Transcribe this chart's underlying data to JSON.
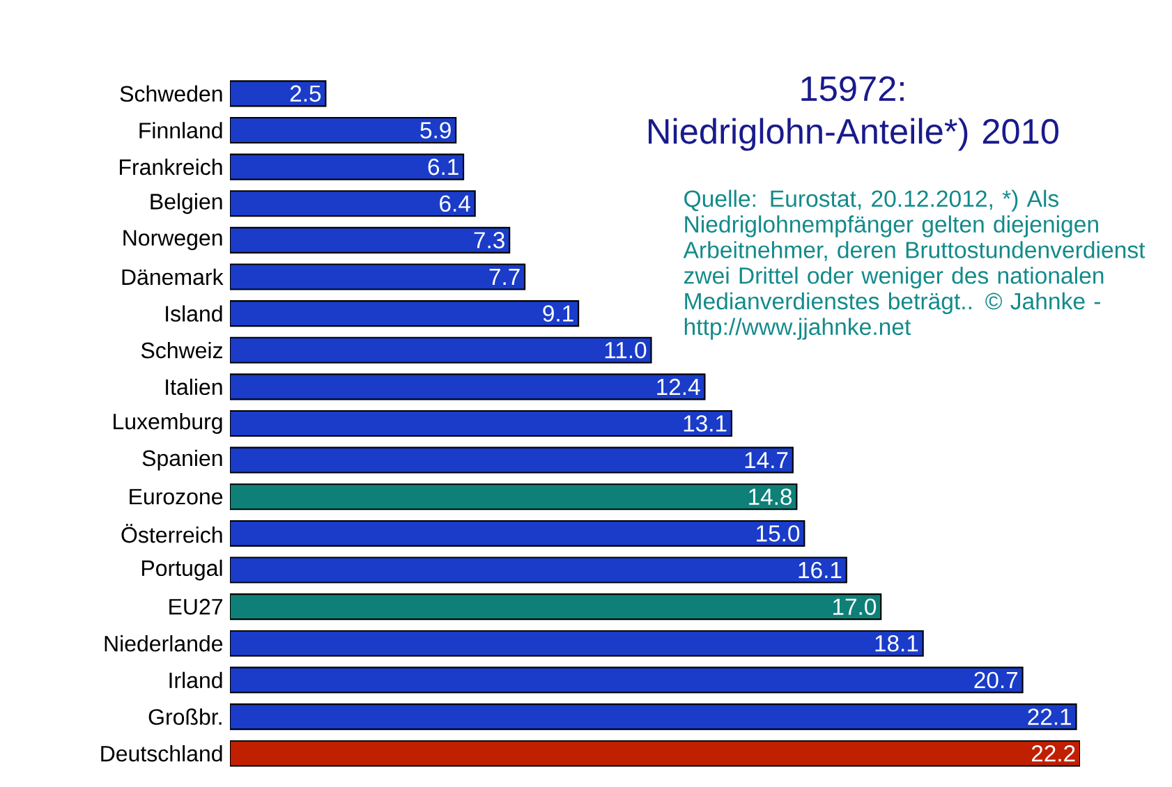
{
  "chart_data": {
    "type": "bar",
    "orientation": "horizontal",
    "title": "15972: Niedriglohn-Anteile*) 2010",
    "annotations": [
      "Quelle: Eurostat, 20.12.2012, *) Als Niedriglohnempfänger gelten diejenigen Arbeitnehmer, deren Bruttostundenverdienst zwei Drittel oder weniger des nationalen Medianverdienstes beträgt.. © Jahnke - http://www.jjahnke.net"
    ],
    "categories": [
      "Schweden",
      "Finnland",
      "Frankreich",
      "Belgien",
      "Norwegen",
      "Dänemark",
      "Island",
      "Schweiz",
      "Italien",
      "Luxemburg",
      "Spanien",
      "Eurozone",
      "Österreich",
      "Portugal",
      "EU27",
      "Niederlande",
      "Irland",
      "Großbr.",
      "Deutschland"
    ],
    "values": [
      2.5,
      5.9,
      6.1,
      6.4,
      7.3,
      7.7,
      9.1,
      11.0,
      12.4,
      13.1,
      14.7,
      14.8,
      15.0,
      16.1,
      17.0,
      18.1,
      20.7,
      22.1,
      22.2
    ],
    "value_labels": [
      "2.5",
      "5.9",
      "6.1",
      "6.4",
      "7.3",
      "7.7",
      "9.1",
      "11.0",
      "12.4",
      "13.1",
      "14.7",
      "14.8",
      "15.0",
      "16.1",
      "17.0",
      "18.1",
      "20.7",
      "22.1",
      "22.2"
    ],
    "colors": [
      "#1a3cc8",
      "#1a3cc8",
      "#1a3cc8",
      "#1a3cc8",
      "#1a3cc8",
      "#1a3cc8",
      "#1a3cc8",
      "#1a3cc8",
      "#1a3cc8",
      "#1a3cc8",
      "#1a3cc8",
      "#0f8078",
      "#1a3cc8",
      "#1a3cc8",
      "#0f8078",
      "#1a3cc8",
      "#1a3cc8",
      "#1a3cc8",
      "#c02000"
    ]
  }
}
